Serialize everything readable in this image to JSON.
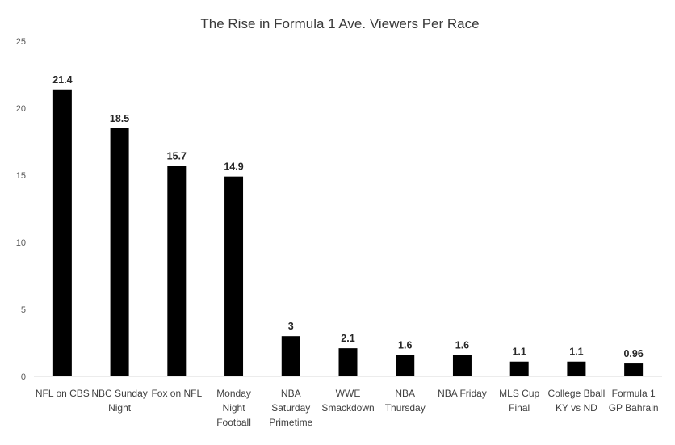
{
  "chart_data": {
    "type": "bar",
    "title": "The Rise in Formula 1 Ave. Viewers Per Race",
    "xlabel": "",
    "ylabel": "",
    "ylim": [
      0,
      25
    ],
    "yticks": [
      0,
      5,
      10,
      15,
      20,
      25
    ],
    "grid": false,
    "legend": "none",
    "bar_color": "#000000",
    "categories": [
      [
        "NFL on CBS"
      ],
      [
        "NBC Sunday",
        "Night"
      ],
      [
        "Fox on NFL"
      ],
      [
        "Monday",
        "Night",
        "Football"
      ],
      [
        "NBA",
        "Saturday",
        "Primetime"
      ],
      [
        "WWE",
        "Smackdown"
      ],
      [
        "NBA",
        "Thursday"
      ],
      [
        "NBA Friday"
      ],
      [
        "MLS Cup",
        "Final"
      ],
      [
        "College Bball",
        "KY vs ND"
      ],
      [
        "Formula 1",
        "GP Bahrain"
      ]
    ],
    "values": [
      21.4,
      18.5,
      15.7,
      14.9,
      3,
      2.1,
      1.6,
      1.6,
      1.1,
      1.1,
      0.96
    ],
    "data_labels": [
      "21.4",
      "18.5",
      "15.7",
      "14.9",
      "3",
      "2.1",
      "1.6",
      "1.6",
      "1.1",
      "1.1",
      "0.96"
    ]
  }
}
